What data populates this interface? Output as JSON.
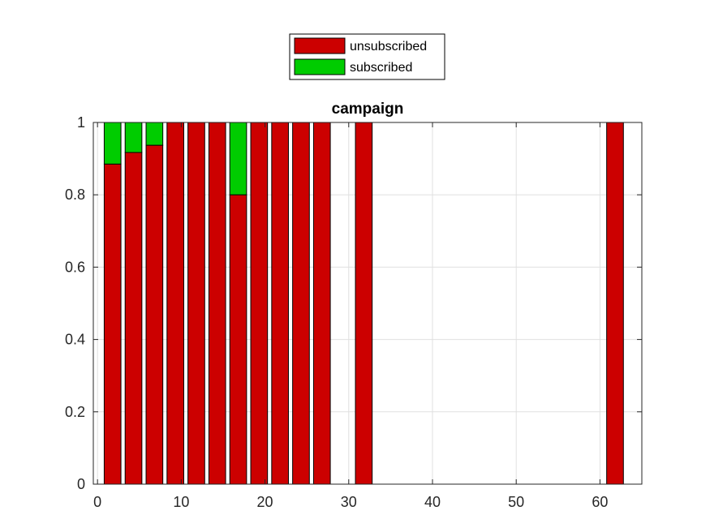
{
  "chart_data": {
    "type": "bar",
    "stacked": true,
    "title": "campaign",
    "xlabel": "",
    "ylabel": "",
    "xlim": [
      -0.5,
      65
    ],
    "ylim": [
      0,
      1
    ],
    "xticks": [
      0,
      10,
      20,
      30,
      40,
      50,
      60
    ],
    "yticks": [
      0,
      0.2,
      0.4,
      0.6,
      0.8,
      1
    ],
    "xtick_labels": [
      "0",
      "10",
      "20",
      "30",
      "40",
      "50",
      "60"
    ],
    "ytick_labels": [
      "0",
      "0.2",
      "0.4",
      "0.6",
      "0.8",
      "1"
    ],
    "grid": true,
    "legend_position": "top-center, outside plot area",
    "x": [
      1.8,
      4.3,
      6.8,
      9.3,
      11.8,
      14.3,
      16.8,
      19.3,
      21.8,
      24.3,
      26.8,
      31.8,
      61.8
    ],
    "series": [
      {
        "name": "unsubscribed",
        "color": "#cc0000",
        "values": [
          0.885,
          0.917,
          0.937,
          1,
          1,
          1,
          0.8,
          1,
          1,
          1,
          1,
          1,
          1
        ]
      },
      {
        "name": "subscribed",
        "color": "#00cc00",
        "values": [
          0.115,
          0.083,
          0.063,
          0,
          0,
          0,
          0.2,
          0,
          0,
          0,
          0,
          0,
          0
        ]
      }
    ]
  }
}
